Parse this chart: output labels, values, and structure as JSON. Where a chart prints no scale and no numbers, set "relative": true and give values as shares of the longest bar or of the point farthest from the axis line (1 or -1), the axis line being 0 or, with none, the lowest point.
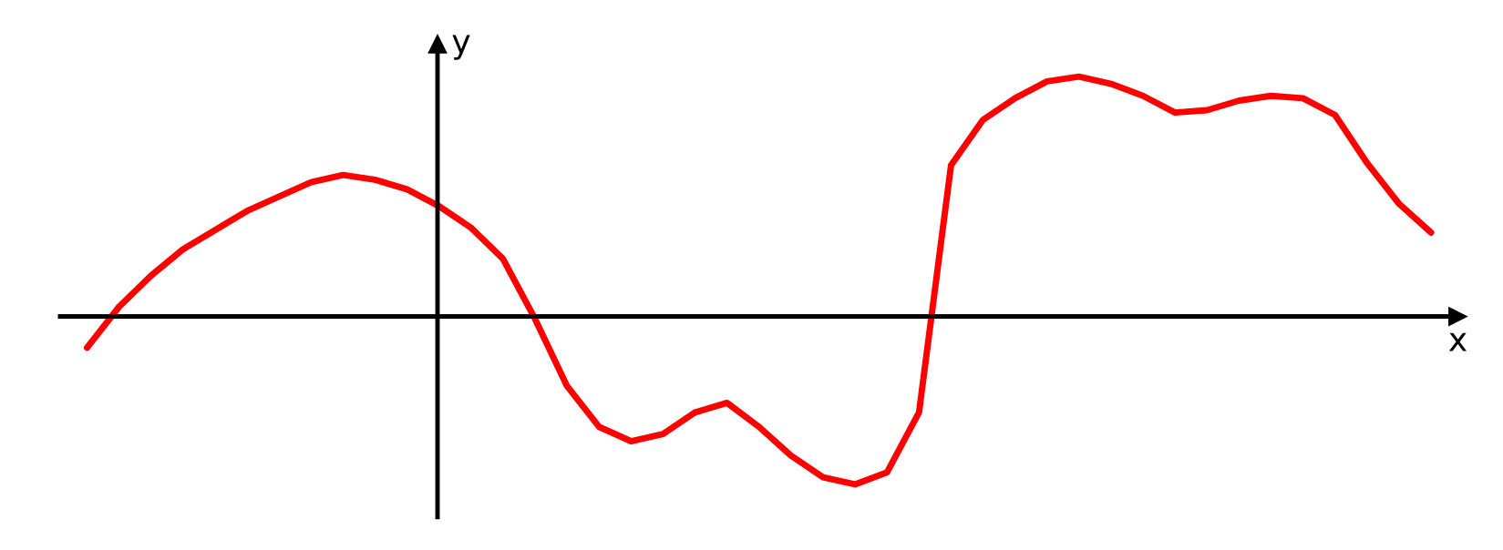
{
  "chart_data": {
    "type": "line",
    "relative": true,
    "xlabel": "x",
    "ylabel": "y",
    "legend": false,
    "marker": "none",
    "line_style": "solid",
    "categories": [
      null,
      null,
      null,
      null,
      null,
      null,
      null,
      null,
      null,
      null,
      null,
      null,
      null,
      null,
      null,
      null,
      null,
      null,
      null,
      null,
      null,
      null,
      null,
      null,
      null,
      null,
      null,
      null,
      null,
      null,
      null,
      null,
      null,
      null,
      null,
      null,
      null,
      null,
      null,
      null,
      null,
      null,
      null
    ],
    "series": [
      {
        "color": "#ff0000",
        "values": [
          -0.13,
          0.04,
          0.17,
          0.28,
          0.36,
          0.44,
          0.5,
          0.56,
          0.59,
          0.57,
          0.53,
          0.46,
          0.37,
          0.24,
          -0.01,
          -0.29,
          -0.46,
          -0.52,
          -0.49,
          -0.4,
          -0.36,
          -0.46,
          -0.58,
          -0.67,
          -0.7,
          -0.65,
          -0.4,
          0.63,
          0.82,
          0.91,
          0.98,
          1.0,
          0.97,
          0.92,
          0.85,
          0.86,
          0.9,
          0.92,
          0.91,
          0.84,
          0.64,
          0.47,
          0.35
        ]
      }
    ]
  }
}
